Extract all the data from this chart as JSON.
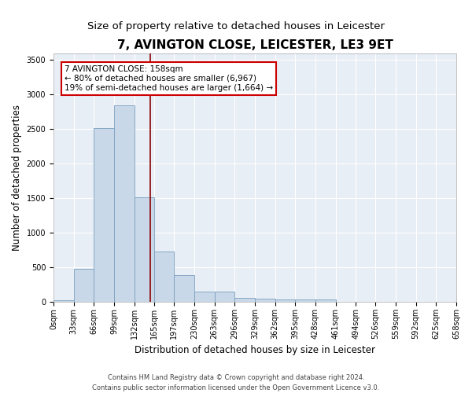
{
  "title": "7, AVINGTON CLOSE, LEICESTER, LE3 9ET",
  "subtitle": "Size of property relative to detached houses in Leicester",
  "xlabel": "Distribution of detached houses by size in Leicester",
  "ylabel": "Number of detached properties",
  "bin_edges": [
    0,
    33,
    66,
    99,
    132,
    165,
    197,
    230,
    263,
    296,
    329,
    362,
    395,
    428,
    461,
    494,
    526,
    559,
    592,
    625,
    658
  ],
  "bin_labels": [
    "0sqm",
    "33sqm",
    "66sqm",
    "99sqm",
    "132sqm",
    "165sqm",
    "197sqm",
    "230sqm",
    "263sqm",
    "296sqm",
    "329sqm",
    "362sqm",
    "395sqm",
    "428sqm",
    "461sqm",
    "494sqm",
    "526sqm",
    "559sqm",
    "592sqm",
    "625sqm",
    "658sqm"
  ],
  "bar_heights": [
    30,
    480,
    2510,
    2840,
    1510,
    730,
    390,
    145,
    145,
    60,
    50,
    40,
    40,
    35,
    0,
    0,
    0,
    0,
    0,
    0
  ],
  "bar_color": "#c8d8e8",
  "bar_edge_color": "#7aa0c0",
  "property_size": 158,
  "vline_color": "#8b0000",
  "annotation_text": "7 AVINGTON CLOSE: 158sqm\n← 80% of detached houses are smaller (6,967)\n19% of semi-detached houses are larger (1,664) →",
  "annotation_box_color": "white",
  "annotation_box_edge": "#cc0000",
  "ylim": [
    0,
    3600
  ],
  "yticks": [
    0,
    500,
    1000,
    1500,
    2000,
    2500,
    3000,
    3500
  ],
  "background_color": "#e8eef5",
  "footer_line1": "Contains HM Land Registry data © Crown copyright and database right 2024.",
  "footer_line2": "Contains public sector information licensed under the Open Government Licence v3.0.",
  "title_fontsize": 11,
  "subtitle_fontsize": 9.5,
  "axis_label_fontsize": 8.5,
  "tick_fontsize": 7,
  "annotation_fontsize": 7.5,
  "footer_fontsize": 6
}
